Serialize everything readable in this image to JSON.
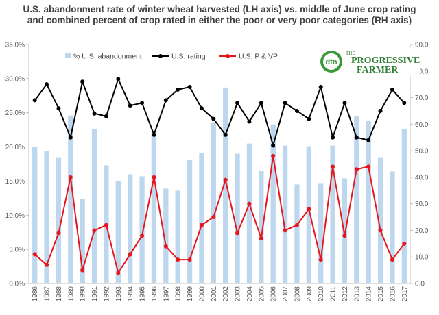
{
  "chart_data": {
    "type": "bar",
    "title": "U.S. abandonment rate of winter wheat harvested (LH axis) vs. middle of June crop rating and combined percent of crop rated in either the poor or very poor categories (RH axis)",
    "categories": [
      "1986",
      "1987",
      "1988",
      "1989",
      "1990",
      "1991",
      "1992",
      "1993",
      "1994",
      "1995",
      "1996",
      "1997",
      "1998",
      "1999",
      "2000",
      "2001",
      "2002",
      "2003",
      "2004",
      "2005",
      "2006",
      "2007",
      "2008",
      "2009",
      "2010",
      "2011",
      "2012",
      "2013",
      "2014",
      "2015",
      "2016",
      "2017"
    ],
    "y_left": {
      "min": 0,
      "max": 35,
      "step": 5,
      "tick_labels": [
        "0.0%",
        "5.0%",
        "10.0%",
        "15.0%",
        "20.0%",
        "25.0%",
        "30.0%",
        "35.0%"
      ]
    },
    "y_right": {
      "min": 0,
      "max": 90,
      "step": 10,
      "tick_labels": [
        "0.0",
        "10.0",
        "20.0",
        "30.0",
        "40.0",
        "50.0",
        "60.0",
        "70.0",
        "80.0",
        "90.0"
      ]
    },
    "legend_position": "top-left",
    "grid": false,
    "series": [
      {
        "name": "% U.S. abandonment",
        "kind": "bar",
        "axis": "left",
        "color": "#bdd7ee",
        "values": [
          20.0,
          19.4,
          18.4,
          24.6,
          12.4,
          22.6,
          17.3,
          15.0,
          16.0,
          15.7,
          22.5,
          13.9,
          13.6,
          18.1,
          19.1,
          23.6,
          28.7,
          19.0,
          20.5,
          16.5,
          23.3,
          20.2,
          14.5,
          20.1,
          14.7,
          20.2,
          15.4,
          24.5,
          23.8,
          18.4,
          16.4,
          22.6
        ]
      },
      {
        "name": "U.S. rating",
        "kind": "line",
        "axis": "right",
        "color": "#000000",
        "values": [
          69,
          75,
          66,
          55,
          76,
          64,
          63,
          77,
          67,
          68,
          56,
          69,
          73,
          74,
          66,
          62,
          56,
          68,
          61,
          68,
          52,
          68,
          65,
          62,
          74,
          55,
          68,
          55,
          54,
          65,
          73,
          68
        ]
      },
      {
        "name": "U.S.  P & VP",
        "kind": "line",
        "axis": "right",
        "color": "#e8151b",
        "values": [
          11,
          7,
          19,
          40,
          5,
          20,
          22,
          4,
          11,
          18,
          40,
          14,
          9,
          9,
          22,
          25,
          39,
          19,
          30,
          17,
          48,
          20,
          22,
          28,
          9,
          44,
          18,
          43,
          44,
          20,
          9,
          15
        ]
      }
    ]
  },
  "logo": {
    "badge": "dtn",
    "line1": "THE",
    "line2": "PROGRESSIVE",
    "line3": "FARMER"
  }
}
